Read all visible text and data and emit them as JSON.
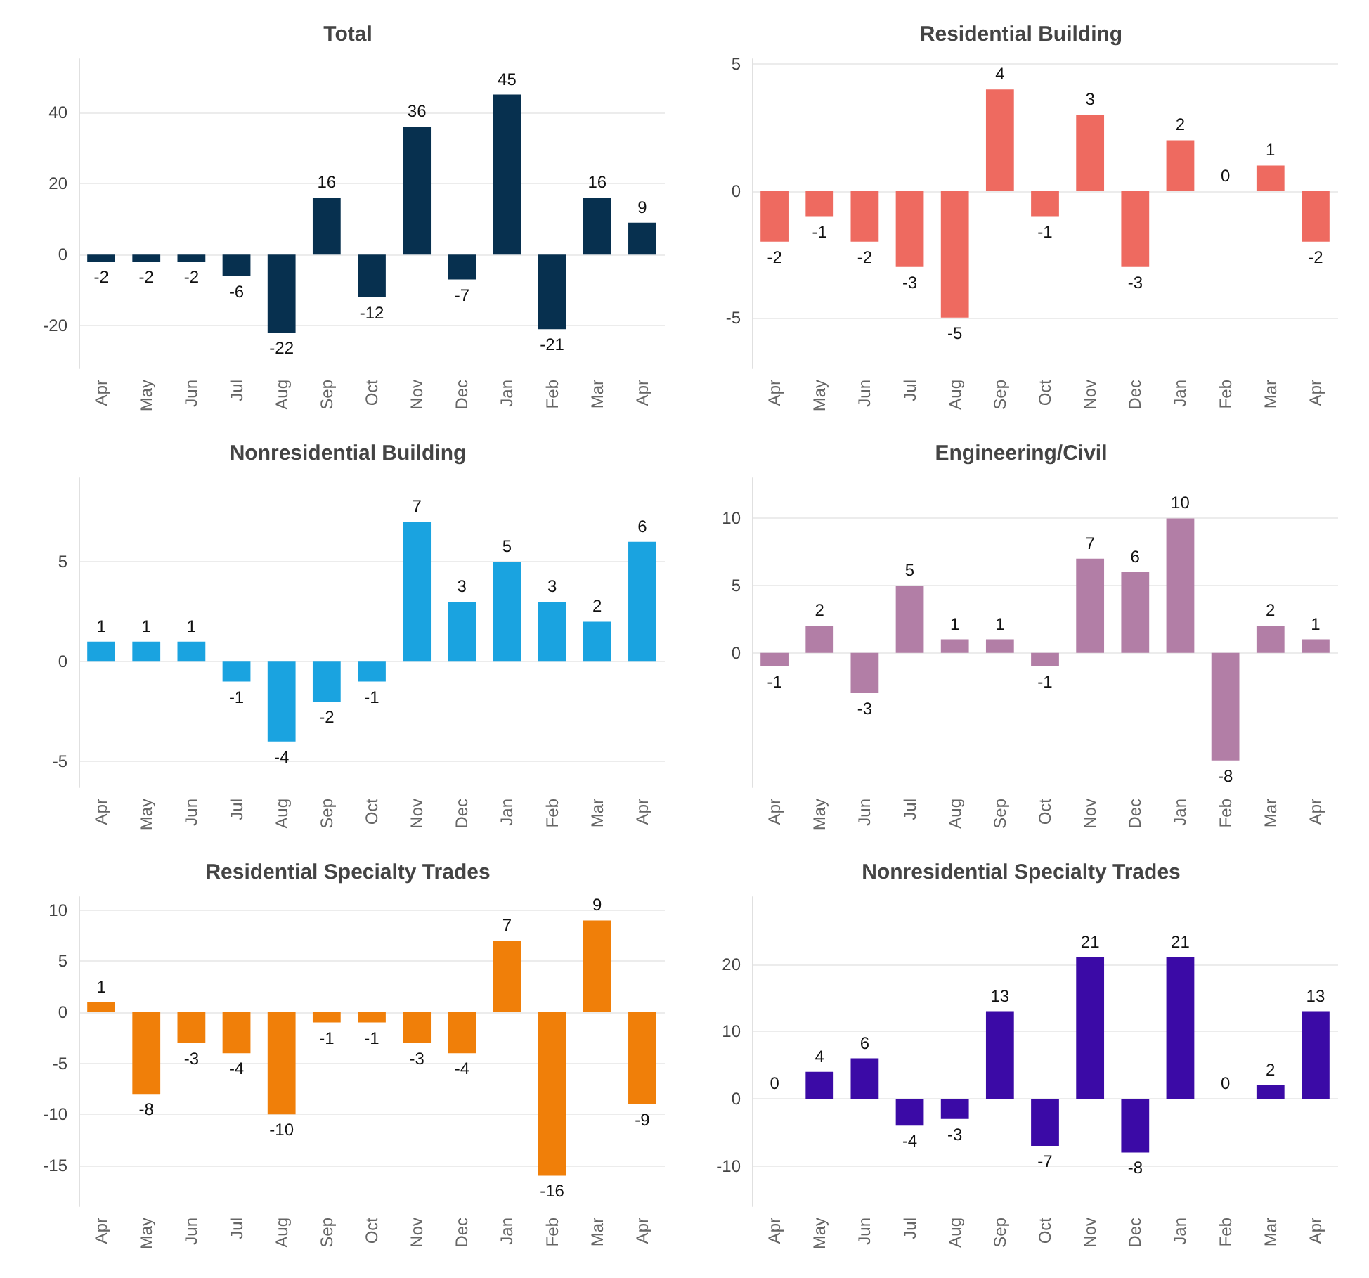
{
  "chart_data": [
    {
      "type": "bar",
      "title": "Total",
      "categories": [
        "Apr",
        "May",
        "Jun",
        "Jul",
        "Aug",
        "Sep",
        "Oct",
        "Nov",
        "Dec",
        "Jan",
        "Feb",
        "Mar",
        "Apr"
      ],
      "values": [
        -2,
        -2,
        -2,
        -6,
        -22,
        16,
        -12,
        36,
        -7,
        45,
        -21,
        16,
        9
      ],
      "color": "#07304f",
      "ylim": [
        -32,
        55
      ],
      "yticks": [
        -20,
        0,
        20,
        40
      ],
      "grid": "y",
      "data_labels": true
    },
    {
      "type": "bar",
      "title": "Residential Building",
      "categories": [
        "Apr",
        "May",
        "Jun",
        "Jul",
        "Aug",
        "Sep",
        "Oct",
        "Nov",
        "Dec",
        "Jan",
        "Feb",
        "Mar",
        "Apr"
      ],
      "values": [
        -2,
        -1,
        -2,
        -3,
        -5,
        4,
        -1,
        3,
        -3,
        2,
        0,
        1,
        -2
      ],
      "color": "#ee6a60",
      "ylim": [
        -7,
        5.2
      ],
      "yticks": [
        -5,
        0,
        5
      ],
      "grid": "y",
      "data_labels": true
    },
    {
      "type": "bar",
      "title": "Nonresidential Building",
      "categories": [
        "Apr",
        "May",
        "Jun",
        "Jul",
        "Aug",
        "Sep",
        "Oct",
        "Nov",
        "Dec",
        "Jan",
        "Feb",
        "Mar",
        "Apr"
      ],
      "values": [
        1,
        1,
        1,
        -1,
        -4,
        -2,
        -1,
        7,
        3,
        5,
        3,
        2,
        6
      ],
      "color": "#1aa3e0",
      "ylim": [
        -6.3,
        9.2
      ],
      "yticks": [
        -5,
        0,
        5
      ],
      "grid": "y",
      "data_labels": true
    },
    {
      "type": "bar",
      "title": "Engineering/Civil",
      "categories": [
        "Apr",
        "May",
        "Jun",
        "Jul",
        "Aug",
        "Sep",
        "Oct",
        "Nov",
        "Dec",
        "Jan",
        "Feb",
        "Mar",
        "Apr"
      ],
      "values": [
        -1,
        2,
        -3,
        5,
        1,
        1,
        -1,
        7,
        6,
        10,
        -8,
        2,
        1
      ],
      "color": "#b27ea6",
      "ylim": [
        -10,
        13
      ],
      "yticks": [
        0,
        5,
        10
      ],
      "grid": "y",
      "data_labels": true
    },
    {
      "type": "bar",
      "title": "Residential Specialty Trades",
      "categories": [
        "Apr",
        "May",
        "Jun",
        "Jul",
        "Aug",
        "Sep",
        "Oct",
        "Nov",
        "Dec",
        "Jan",
        "Feb",
        "Mar",
        "Apr"
      ],
      "values": [
        1,
        -8,
        -3,
        -4,
        -10,
        -1,
        -1,
        -3,
        -4,
        7,
        -16,
        9,
        -9
      ],
      "color": "#f07f09",
      "ylim": [
        -19,
        11.3
      ],
      "yticks": [
        -15,
        -10,
        -5,
        0,
        5,
        10
      ],
      "grid": "y",
      "data_labels": true
    },
    {
      "type": "bar",
      "title": "Nonresidential Specialty Trades",
      "categories": [
        "Apr",
        "May",
        "Jun",
        "Jul",
        "Aug",
        "Sep",
        "Oct",
        "Nov",
        "Dec",
        "Jan",
        "Feb",
        "Mar",
        "Apr"
      ],
      "values": [
        0,
        4,
        6,
        -4,
        -3,
        13,
        -7,
        21,
        -8,
        21,
        0,
        2,
        13
      ],
      "color": "#3b0aa6",
      "ylim": [
        -16,
        30
      ],
      "yticks": [
        -10,
        0,
        10,
        20
      ],
      "grid": "y",
      "data_labels": true
    }
  ]
}
